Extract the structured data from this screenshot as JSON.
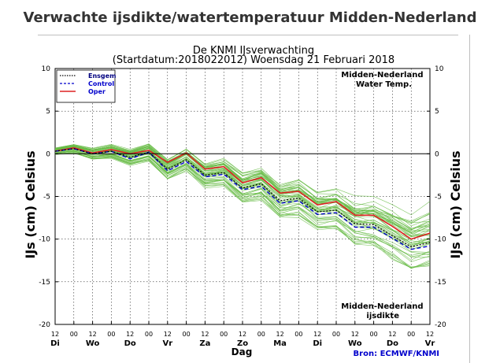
{
  "page": {
    "title": "Verwachte ijsdikte/watertemperatuur Midden-Nederland"
  },
  "chart_data": {
    "type": "line",
    "title": "De KNMI IJsverwachting",
    "subtitle": "(Startdatum:2018022012)  Woensdag 21 Februari 2018",
    "ylabel_left": "IJs (cm)  Celsius",
    "ylabel_right": "IJs (cm)  Celsius",
    "xlabel": "Dag",
    "annotation_top_right": [
      "Midden-Nederland",
      "Water Temp."
    ],
    "annotation_bottom_right": [
      "Midden-Nederland",
      "ijsdikte"
    ],
    "source": "Bron: ECMWF/KNMI",
    "ylim": [
      -20,
      10
    ],
    "yticks": [
      10,
      5,
      0,
      -5,
      -10,
      -15,
      -20
    ],
    "ytick_labels": [
      "10",
      "5",
      "0",
      "-5",
      "-10",
      "-15",
      "-20"
    ],
    "x_hour_labels": [
      "12",
      "00",
      "12",
      "00",
      "12",
      "00",
      "12",
      "00",
      "12",
      "00",
      "12",
      "00",
      "12",
      "00",
      "12",
      "00",
      "12",
      "00",
      "12",
      "00",
      "12"
    ],
    "x_day_labels": [
      "Di",
      "Wo",
      "Do",
      "Vr",
      "Za",
      "Zo",
      "Ma",
      "Di",
      "Wo",
      "Do",
      "Vr"
    ],
    "grid": true,
    "legend_position": "top-left",
    "legend": [
      {
        "label": "Ensgem",
        "style": "dotted",
        "color": "#000000",
        "text_color": "#000080"
      },
      {
        "label": "Control",
        "style": "dashed",
        "color": "#0000cc",
        "text_color": "#0000cc"
      },
      {
        "label": "Oper",
        "style": "solid",
        "color": "#dd2222",
        "text_color": "#0000cc"
      }
    ],
    "series": [
      {
        "name": "Oper",
        "color": "#dd2222",
        "values": [
          0.3,
          0.7,
          0.1,
          0.5,
          0.0,
          0.4,
          -1.0,
          0.1,
          -1.8,
          -1.5,
          -3.4,
          -2.8,
          -4.6,
          -4.4,
          -6.0,
          -5.6,
          -7.2,
          -7.2,
          -8.5,
          -10.0,
          -9.3
        ]
      },
      {
        "name": "Ensgem",
        "color": "#000000",
        "values": [
          0.3,
          0.6,
          0.0,
          0.3,
          -0.4,
          0.2,
          -1.8,
          -0.7,
          -2.5,
          -2.2,
          -4.0,
          -3.5,
          -5.5,
          -5.2,
          -6.8,
          -6.6,
          -8.2,
          -8.3,
          -9.6,
          -10.9,
          -10.4
        ]
      },
      {
        "name": "Control",
        "color": "#0000cc",
        "values": [
          0.3,
          0.6,
          0.0,
          0.3,
          -0.6,
          0.2,
          -2.0,
          -0.9,
          -2.7,
          -2.4,
          -4.2,
          -3.8,
          -5.8,
          -5.5,
          -7.1,
          -6.9,
          -8.6,
          -8.6,
          -9.9,
          -11.2,
          -10.8
        ]
      }
    ]
  }
}
